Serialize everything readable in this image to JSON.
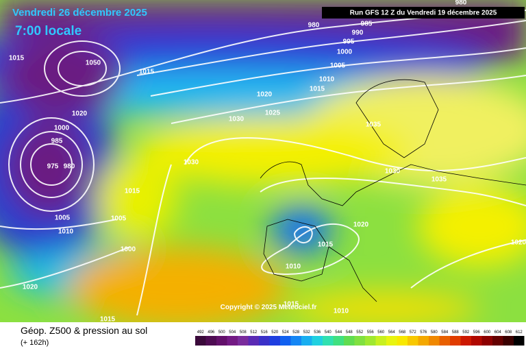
{
  "header": {
    "date": "Vendredi 26 décembre 2025",
    "time": "7:00 locale",
    "run": "Run GFS 12 Z du Vendredi 19 décembre 2025"
  },
  "copyright": "Copyright © 2025 Meteociel.fr",
  "footer": {
    "title": "Géop. Z500 & pression au sol",
    "lead": "(+ 162h)"
  },
  "isobar_labels": [
    "980",
    "985",
    "990",
    "995",
    "1000",
    "1005",
    "1010",
    "1015",
    "1020",
    "1025",
    "1030",
    "1035",
    "1030",
    "1030",
    "1035",
    "1015",
    "1050",
    "1015",
    "1020",
    "1000",
    "985",
    "975",
    "980",
    "1015",
    "1005",
    "1010",
    "1005",
    "1000",
    "1020",
    "1015",
    "1010",
    "1020",
    "1015",
    "1010",
    "1015",
    "980",
    "1020"
  ],
  "legend": {
    "levels": [
      "492",
      "496",
      "500",
      "504",
      "508",
      "512",
      "516",
      "520",
      "524",
      "528",
      "532",
      "536",
      "540",
      "544",
      "548",
      "552",
      "556",
      "560",
      "564",
      "568",
      "572",
      "576",
      "580",
      "584",
      "588",
      "592",
      "596",
      "600",
      "604",
      "608",
      "612"
    ],
    "colors": [
      "#3a0a3a",
      "#4e0c52",
      "#62106a",
      "#731a84",
      "#7a2c9c",
      "#5a2ab4",
      "#3a30c8",
      "#1e3ee0",
      "#1060f0",
      "#1486f4",
      "#18aef0",
      "#20d0e0",
      "#30e0b0",
      "#40e080",
      "#60dc50",
      "#80e040",
      "#a0e830",
      "#c8f020",
      "#e8f410",
      "#f8e800",
      "#f8c800",
      "#f4a800",
      "#f08800",
      "#e86000",
      "#e03c00",
      "#cc1800",
      "#b00800",
      "#8c0000",
      "#640000",
      "#3a0000",
      "#000000"
    ]
  }
}
